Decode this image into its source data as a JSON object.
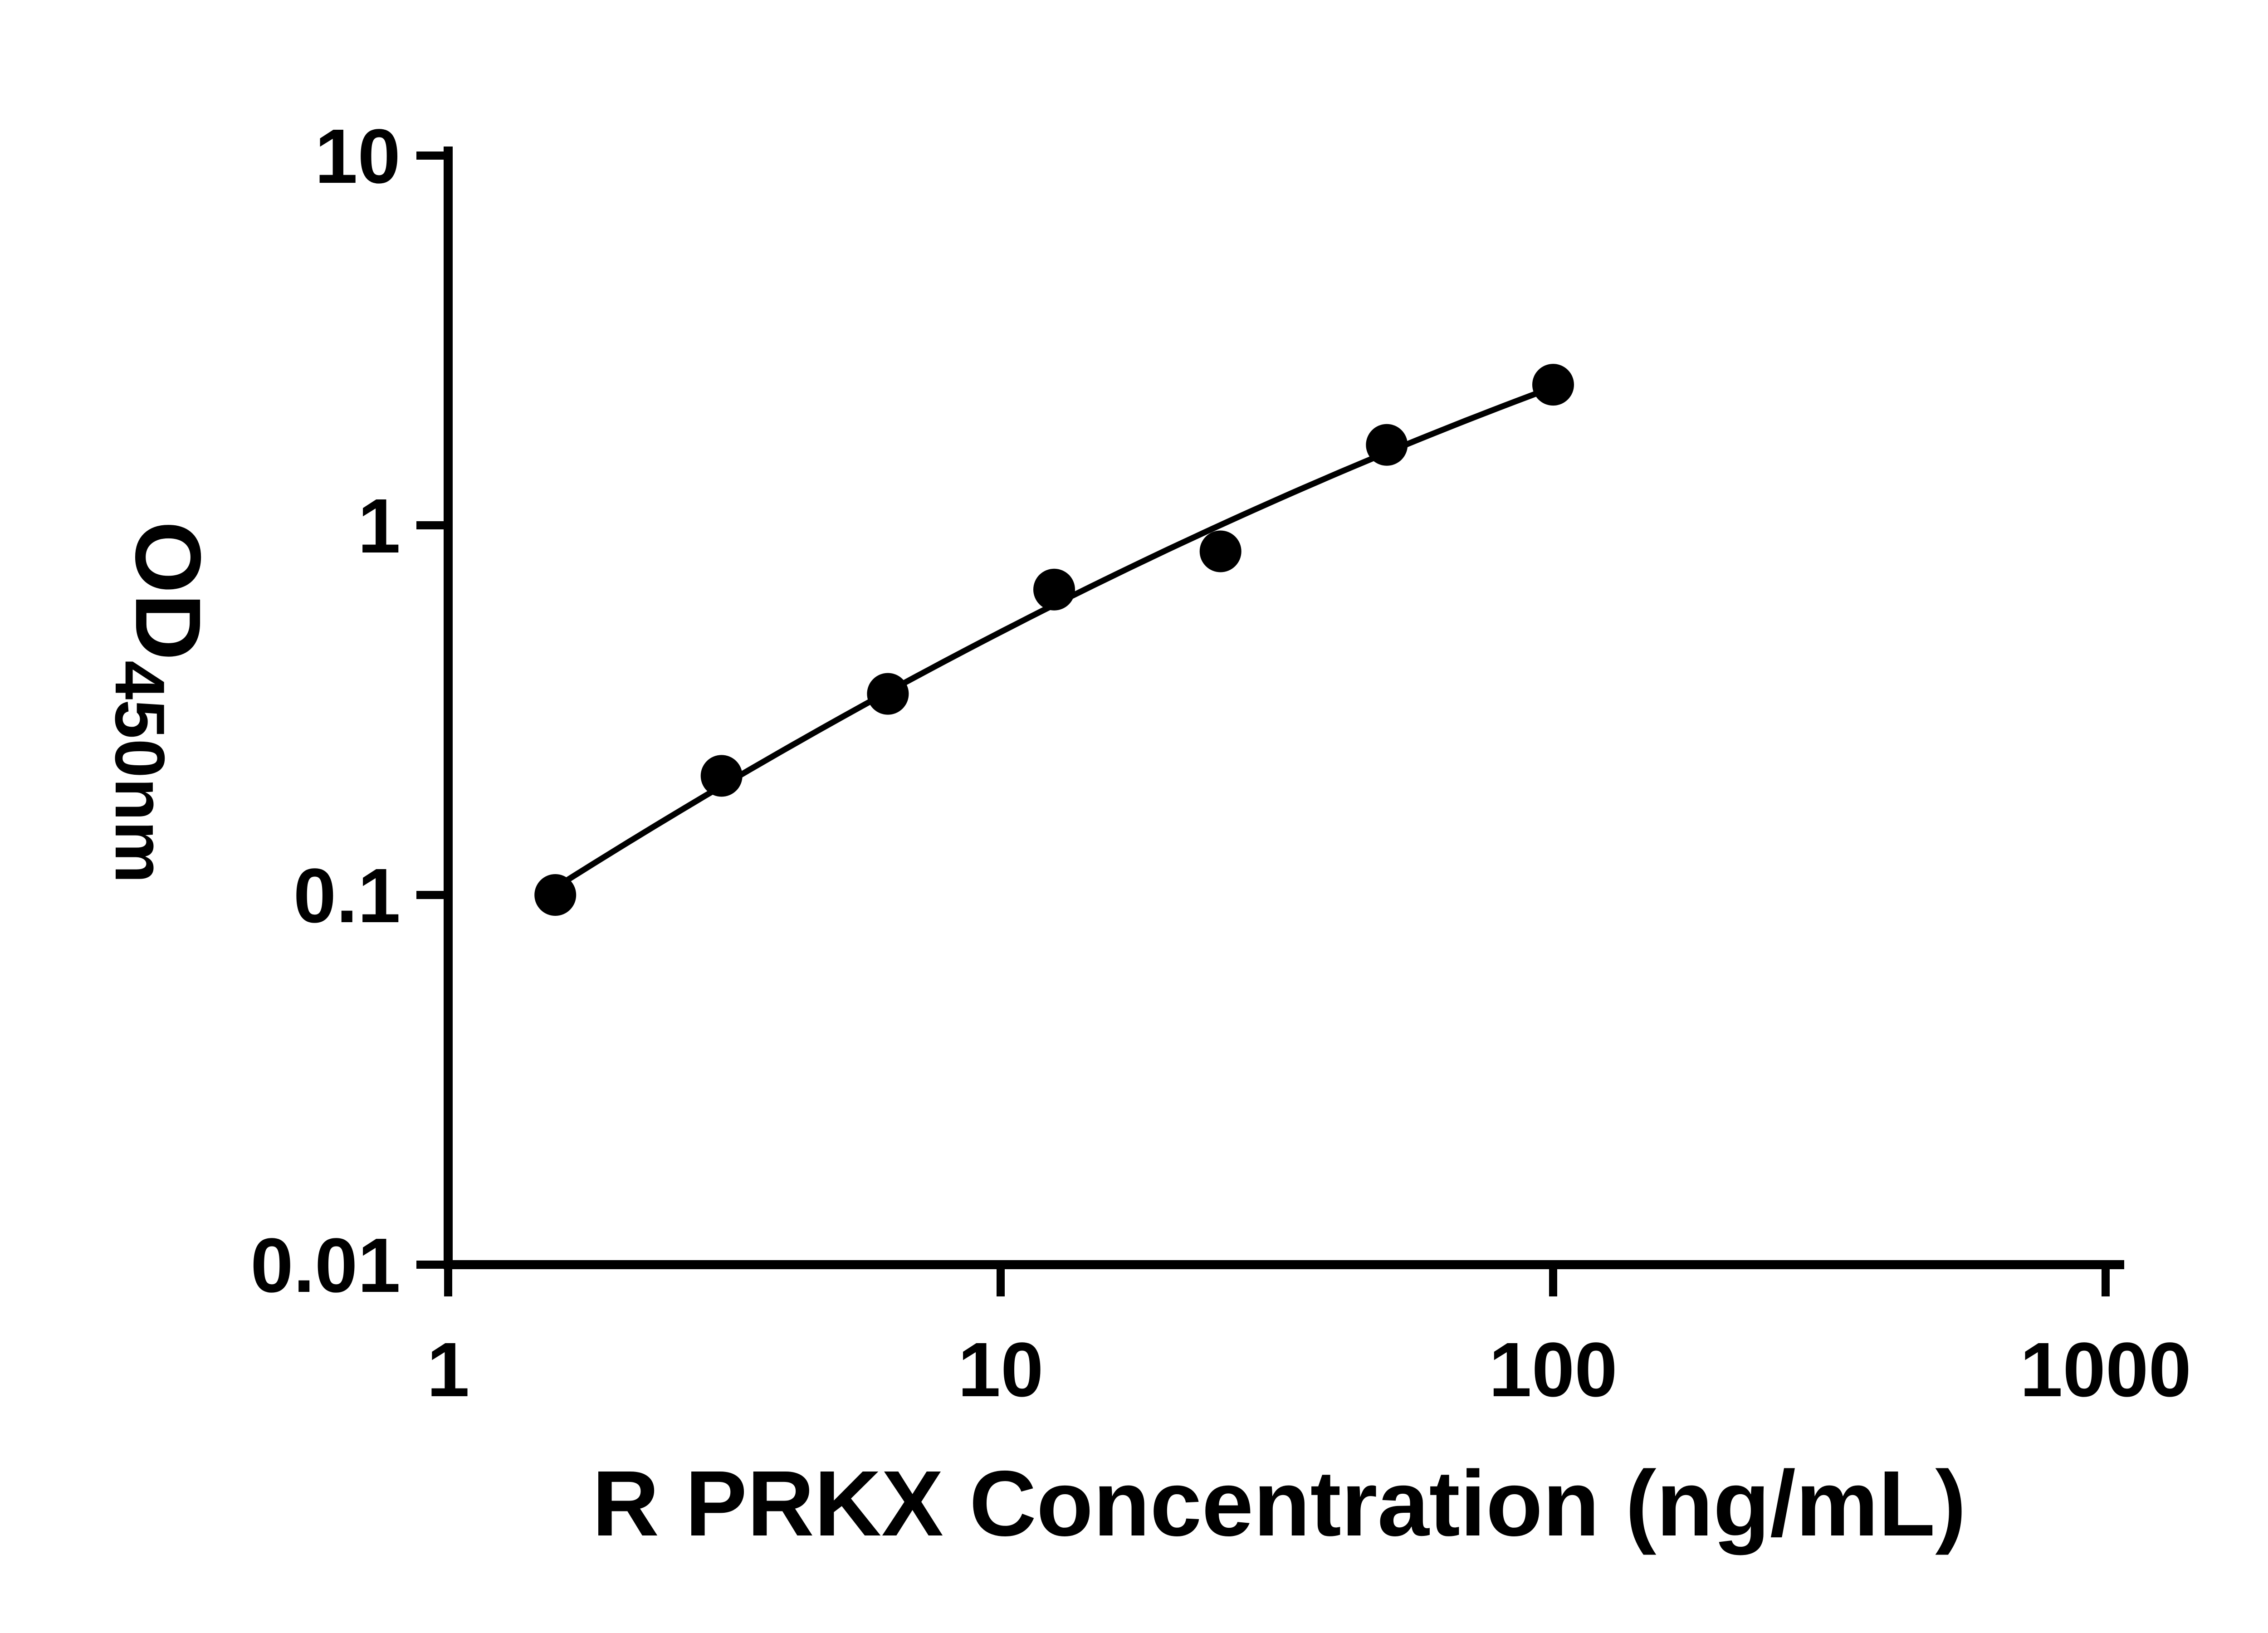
{
  "chart_data": {
    "type": "scatter",
    "title": "",
    "xlabel": "R PRKX Concentration (ng/mL)",
    "ylabel_main": "OD",
    "ylabel_sub": "450nm",
    "x_scale": "log10",
    "y_scale": "log10",
    "xlim": [
      1,
      1000
    ],
    "ylim": [
      0.01,
      10
    ],
    "x_ticks": [
      1,
      10,
      100,
      1000
    ],
    "x_tick_labels": [
      "1",
      "10",
      "100",
      "1000"
    ],
    "y_ticks": [
      0.01,
      0.1,
      1,
      10
    ],
    "y_tick_labels": [
      "0.01",
      "0.1",
      "1",
      "10"
    ],
    "x": [
      1.563,
      3.125,
      6.25,
      12.5,
      25,
      50,
      100
    ],
    "y": [
      0.1,
      0.21,
      0.35,
      0.67,
      0.85,
      1.65,
      2.4
    ],
    "fit": "smooth curve through standards (quadratic in log-log space)",
    "marker_color": "#000000",
    "line_color": "#000000",
    "background": "#ffffff",
    "grid": false,
    "legend": false
  }
}
